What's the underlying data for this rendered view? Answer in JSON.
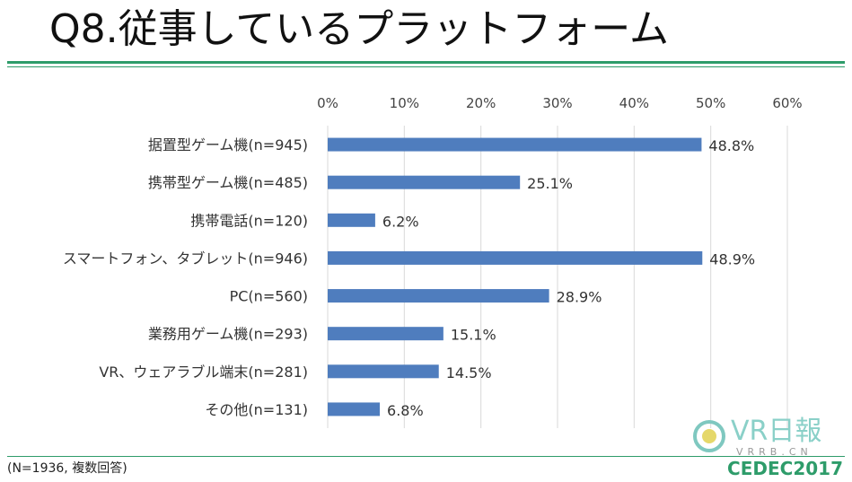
{
  "slide": {
    "title": "Q8.従事しているプラットフォーム",
    "footnote": "(N=1936, 複数回答)",
    "watermark_text": "VR日報",
    "watermark_sub": "VRRB.CN",
    "event_logo": "CEDEC2017",
    "accent_color": "#2e9c6a"
  },
  "chart_data": {
    "type": "bar",
    "orientation": "horizontal",
    "categories": [
      "据置型ゲーム機(n=945)",
      "携帯型ゲーム機(n=485)",
      "携帯電話(n=120)",
      "スマートフォン、タブレット(n=946)",
      "PC(n=560)",
      "業務用ゲーム機(n=293)",
      "VR、ウェアラブル端末(n=281)",
      "その他(n=131)"
    ],
    "values": [
      48.8,
      25.1,
      6.2,
      48.9,
      28.9,
      15.1,
      14.5,
      6.8
    ],
    "value_labels": [
      "48.8%",
      "25.1%",
      "6.2%",
      "48.9%",
      "28.9%",
      "15.1%",
      "14.5%",
      "6.8%"
    ],
    "xlim": [
      0,
      60
    ],
    "xticks": [
      0,
      10,
      20,
      30,
      40,
      50,
      60
    ],
    "xtick_labels": [
      "0%",
      "10%",
      "20%",
      "30%",
      "40%",
      "50%",
      "60%"
    ],
    "x_axis_position": "top",
    "grid": true,
    "bar_color": "#4f7dbe",
    "grid_color": "#d9d9d9",
    "legend": "none"
  }
}
